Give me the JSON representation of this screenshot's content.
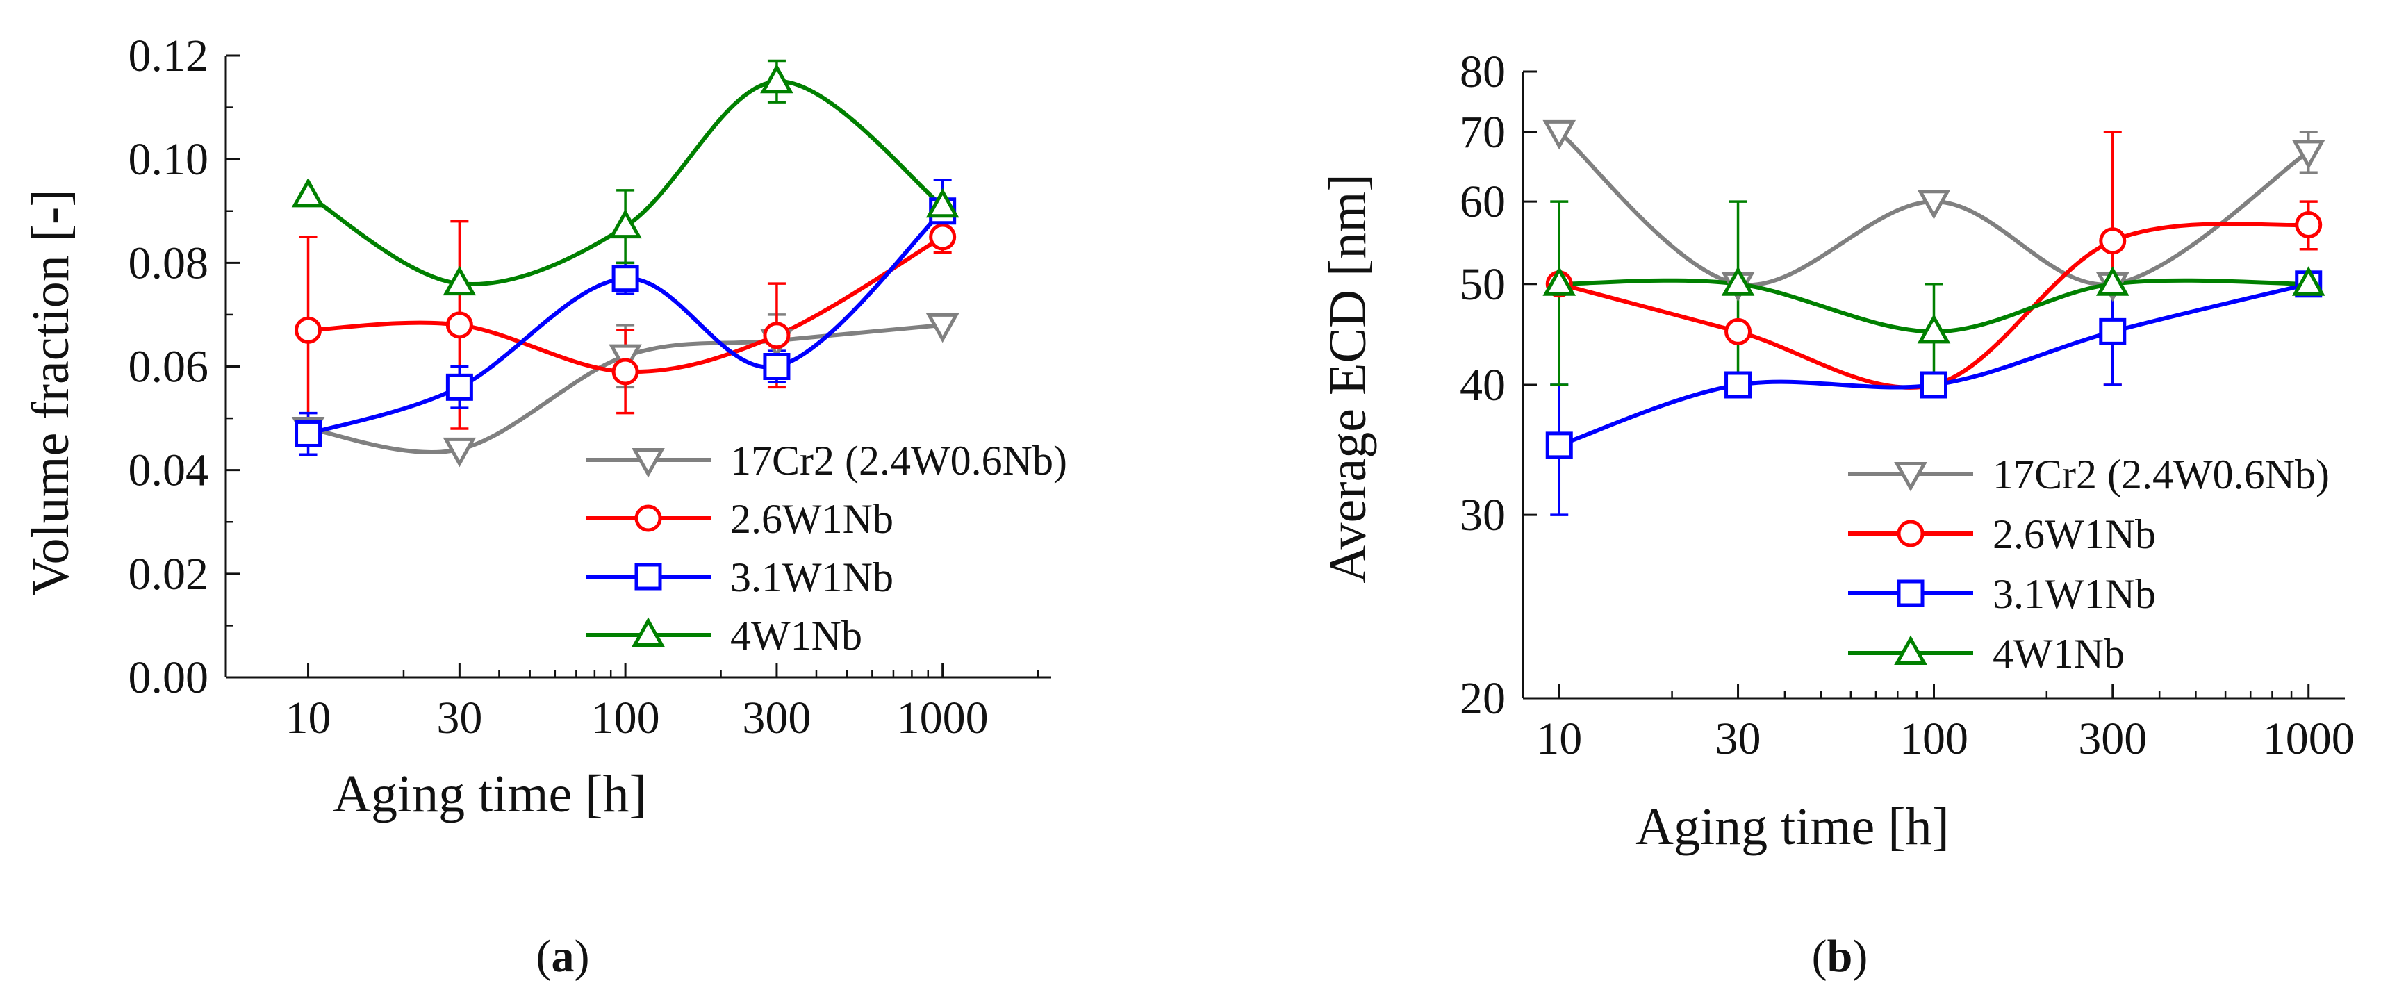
{
  "chart_data": [
    {
      "type": "line",
      "panel": "a",
      "caption": {
        "open": "(",
        "letter": "a",
        "close": ")"
      },
      "xscale": "log",
      "yscale": "linear",
      "xlabel": "Aging time [h]",
      "ylabel": "Volume fraction [-]",
      "xlim": [
        5.5,
        2200
      ],
      "ylim": [
        0,
        0.12
      ],
      "xticks": [
        10,
        30,
        100,
        300,
        1000
      ],
      "xtick_labels": [
        "10",
        "30",
        "100",
        "300",
        "1000"
      ],
      "yticks": [
        0,
        0.02,
        0.04,
        0.06,
        0.08,
        0.1,
        0.12
      ],
      "ytick_labels": [
        "0.00",
        "0.02",
        "0.04",
        "0.06",
        "0.08",
        "0.10",
        "0.12"
      ],
      "legend_position": "lower-right",
      "x": [
        10,
        30,
        100,
        300,
        1000
      ],
      "series": [
        {
          "name": "17Cr2 (2.4W0.6Nb)",
          "color": "#808080",
          "marker": "triangle-down",
          "values": [
            0.048,
            0.044,
            0.062,
            0.065,
            0.068
          ],
          "err": [
            0,
            0,
            0.006,
            0.005,
            0
          ]
        },
        {
          "name": "2.6W1Nb",
          "color": "#ff0000",
          "marker": "circle",
          "values": [
            0.067,
            0.068,
            0.059,
            0.066,
            0.085
          ],
          "err": [
            0.018,
            0.02,
            0.008,
            0.01,
            0.003
          ]
        },
        {
          "name": "3.1W1Nb",
          "color": "#0000ff",
          "marker": "square",
          "values": [
            0.047,
            0.056,
            0.077,
            0.06,
            0.09
          ],
          "err": [
            0.004,
            0.004,
            0.003,
            0.003,
            0.006
          ]
        },
        {
          "name": "4W1Nb",
          "color": "#008000",
          "marker": "triangle-up",
          "values": [
            0.093,
            0.076,
            0.087,
            0.115,
            0.091
          ],
          "err": [
            0,
            0,
            0.007,
            0.004,
            0
          ]
        }
      ]
    },
    {
      "type": "line",
      "panel": "b",
      "caption": {
        "open": "(",
        "letter": "b",
        "close": ")"
      },
      "xscale": "log",
      "yscale": "log",
      "xlabel": "Aging time [h]",
      "ylabel": "Average ECD [nm]",
      "xlim": [
        8,
        1250
      ],
      "ylim": [
        20,
        80
      ],
      "xticks": [
        10,
        30,
        100,
        300,
        1000
      ],
      "xtick_labels": [
        "10",
        "30",
        "100",
        "300",
        "1000"
      ],
      "yticks": [
        20,
        30,
        40,
        50,
        60,
        70,
        80
      ],
      "ytick_labels": [
        "20",
        "30",
        "40",
        "50",
        "60",
        "70",
        "80"
      ],
      "legend_position": "lower-right",
      "x": [
        10,
        30,
        100,
        300,
        1000
      ],
      "series": [
        {
          "name": "17Cr2 (2.4W0.6Nb)",
          "color": "#808080",
          "marker": "triangle-down",
          "values": [
            70,
            50,
            60,
            50,
            67
          ],
          "err": [
            0,
            0,
            0,
            0,
            3
          ]
        },
        {
          "name": "2.6W1Nb",
          "color": "#ff0000",
          "marker": "circle",
          "values": [
            50,
            45,
            40,
            55,
            57
          ],
          "err": [
            0,
            0,
            0,
            15,
            3
          ]
        },
        {
          "name": "3.1W1Nb",
          "color": "#0000ff",
          "marker": "square",
          "values": [
            35,
            40,
            40,
            45,
            50
          ],
          "err": [
            5,
            0,
            0,
            5,
            0
          ]
        },
        {
          "name": "4W1Nb",
          "color": "#008000",
          "marker": "triangle-up",
          "values": [
            50,
            50,
            45,
            50,
            50
          ],
          "err": [
            10,
            10,
            5,
            0,
            0
          ]
        }
      ]
    }
  ]
}
